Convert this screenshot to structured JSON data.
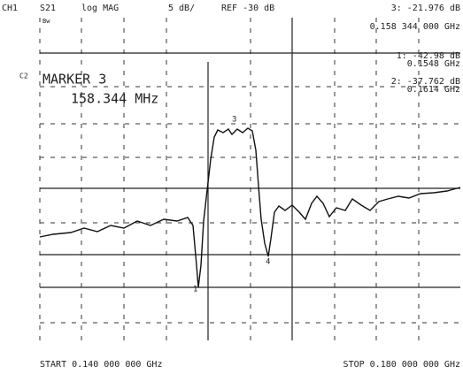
{
  "header": {
    "channel": "CH1",
    "param": "S21",
    "format": "log MAG",
    "scale": "5 dB/",
    "ref": "REF -30 dB",
    "active_marker": "3: -21.976 dB",
    "active_freq": "0.158 344 000 GHz"
  },
  "side": {
    "bw": "Bw",
    "c2": "C2"
  },
  "markers": [
    {
      "value": "1: -42.98 dB",
      "freq": "0.1548 GHz"
    },
    {
      "value": "2: -37.762 dB",
      "freq": "0.1614 GHz"
    }
  ],
  "marker_box": {
    "title": "MARKER 3",
    "freq": "158.344 MHz"
  },
  "marker_tags": [
    "1",
    "3",
    "4"
  ],
  "footer": {
    "start": "START 0.140 000 000 GHz",
    "stop": "STOP 0.180 000 000 GHz"
  }
}
